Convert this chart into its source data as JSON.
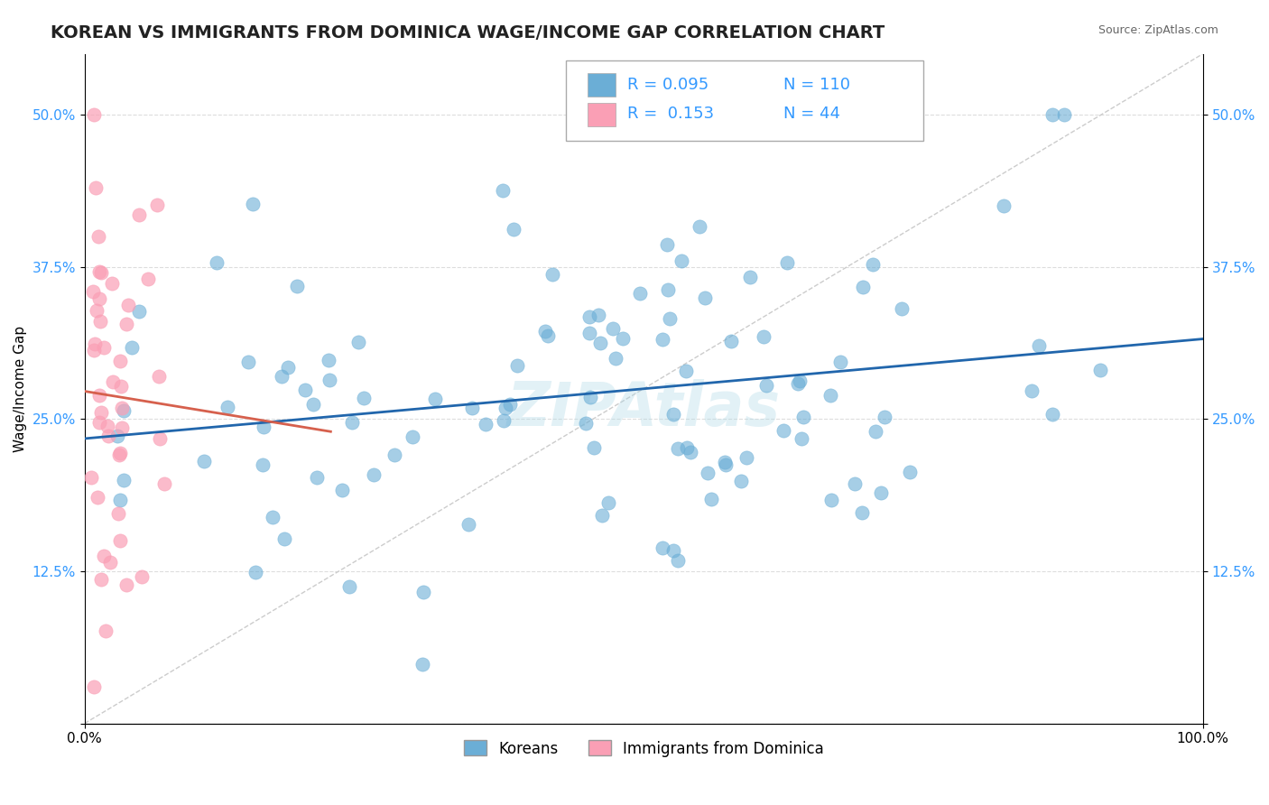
{
  "title": "KOREAN VS IMMIGRANTS FROM DOMINICA WAGE/INCOME GAP CORRELATION CHART",
  "source": "Source: ZipAtlas.com",
  "ylabel": "Wage/Income Gap",
  "xmin": 0.0,
  "xmax": 1.0,
  "ymin": 0.0,
  "ymax": 0.55,
  "yticks": [
    0.0,
    0.125,
    0.25,
    0.375,
    0.5
  ],
  "ytick_labels": [
    "",
    "12.5%",
    "25.0%",
    "37.5%",
    "50.0%"
  ],
  "legend_labels": [
    "Koreans",
    "Immigrants from Dominica"
  ],
  "r_korean": 0.095,
  "n_korean": 110,
  "r_dominica": 0.153,
  "n_dominica": 44,
  "blue_color": "#6baed6",
  "pink_color": "#fa9fb5",
  "blue_line_color": "#2166ac",
  "pink_line_color": "#d6604d",
  "title_fontsize": 14,
  "axis_label_fontsize": 11,
  "tick_fontsize": 11,
  "legend_fontsize": 12
}
